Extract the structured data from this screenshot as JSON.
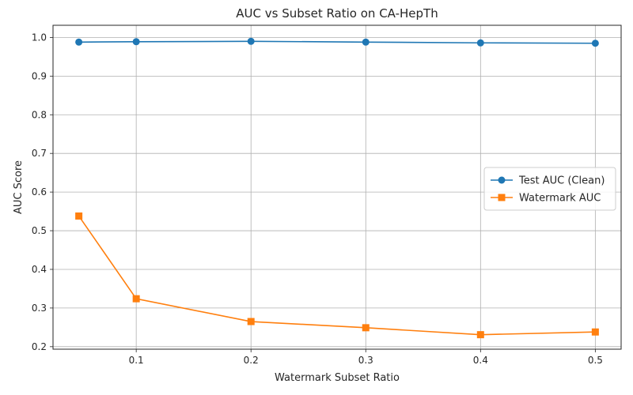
{
  "chart_data": {
    "type": "line",
    "title": "AUC vs Subset Ratio on CA-HepTh",
    "xlabel": "Watermark Subset Ratio",
    "ylabel": "AUC Score",
    "x": [
      0.05,
      0.1,
      0.2,
      0.3,
      0.4,
      0.5
    ],
    "xlim": [
      0.0275,
      0.5225
    ],
    "ylim": [
      0.1935,
      1.0315
    ],
    "xticks": [
      0.1,
      0.2,
      0.3,
      0.4,
      0.5
    ],
    "xtick_labels": [
      "0.1",
      "0.2",
      "0.3",
      "0.4",
      "0.5"
    ],
    "yticks": [
      0.2,
      0.3,
      0.4,
      0.5,
      0.6,
      0.7,
      0.8,
      0.9,
      1.0
    ],
    "ytick_labels": [
      "0.2",
      "0.3",
      "0.4",
      "0.5",
      "0.6",
      "0.7",
      "0.8",
      "0.9",
      "1.0"
    ],
    "grid": true,
    "legend_position": "center-right",
    "series": [
      {
        "name": "Test AUC (Clean)",
        "color": "#1f77b4",
        "marker": "circle",
        "values": [
          0.988,
          0.989,
          0.99,
          0.988,
          0.986,
          0.985
        ]
      },
      {
        "name": "Watermark AUC",
        "color": "#ff7f0e",
        "marker": "square",
        "values": [
          0.538,
          0.324,
          0.265,
          0.249,
          0.231,
          0.238
        ]
      }
    ]
  }
}
